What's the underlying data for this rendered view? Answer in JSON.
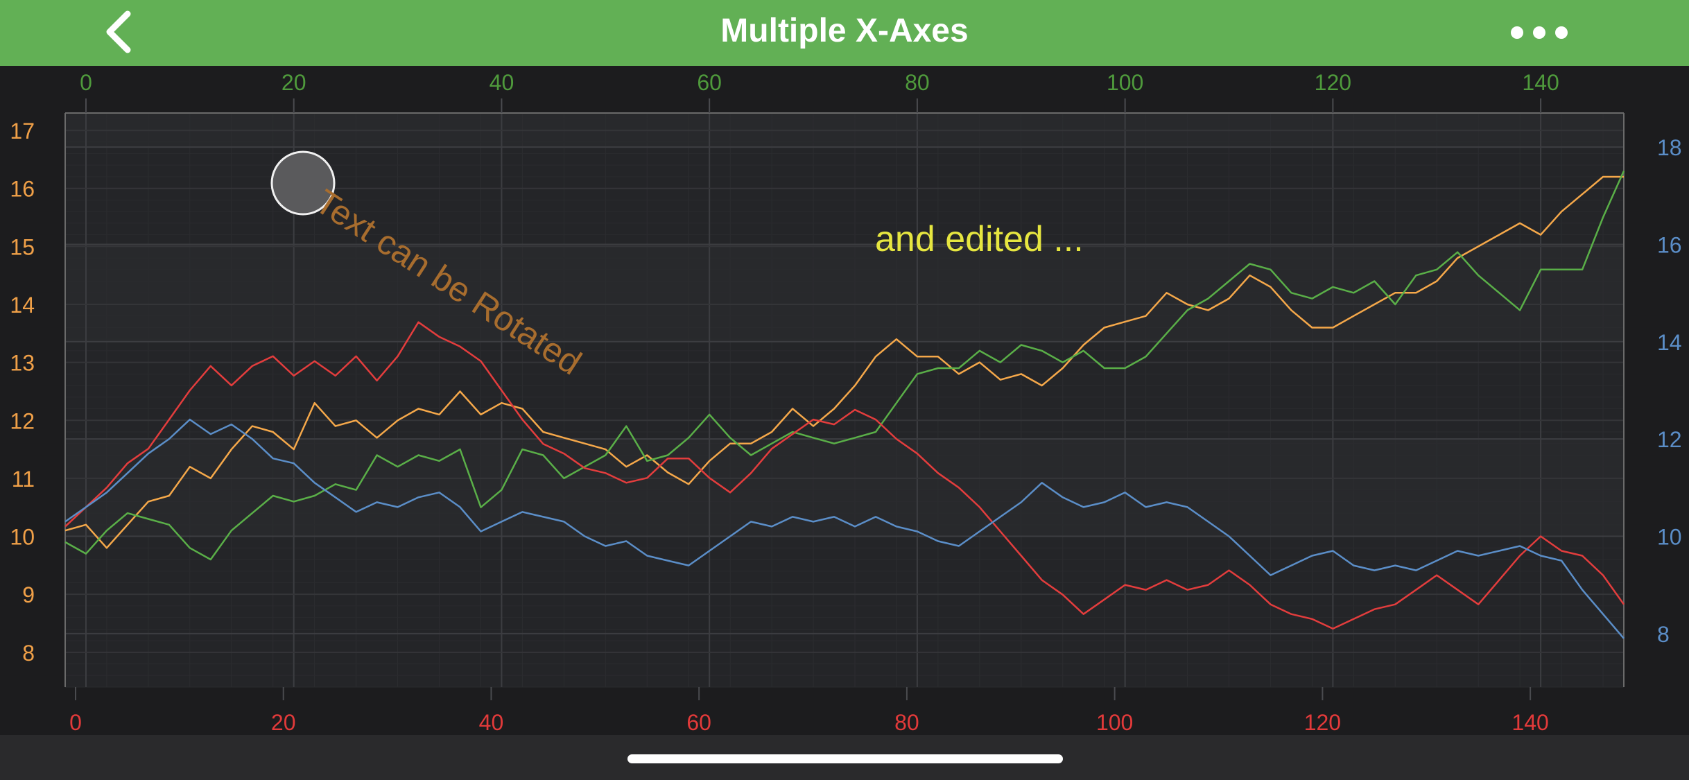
{
  "header": {
    "title": "Multiple X-Axes",
    "back_icon": "chevron-left-icon",
    "more_icon": "ellipsis-icon"
  },
  "annotations": {
    "rotated_text": "Text can be Rotated",
    "edited_text": "and edited ..."
  },
  "colors": {
    "header": "#62b055",
    "top_axis": "#4f9a3c",
    "bottom_axis": "#e23a3a",
    "left_axis": "#f0a048",
    "right_axis": "#5b8ec8",
    "rotated_text": "#a86d2e",
    "edited_text": "#e6e640"
  },
  "chart_data": {
    "type": "line",
    "title": "",
    "x_top": {
      "min": -2,
      "max": 148,
      "ticks": [
        0,
        20,
        40,
        60,
        80,
        100,
        120,
        140
      ]
    },
    "x_bottom": {
      "min": -1,
      "max": 149,
      "ticks": [
        0,
        20,
        40,
        60,
        80,
        100,
        120,
        140
      ]
    },
    "y_left": {
      "min": 7.4,
      "max": 17.3,
      "ticks": [
        8,
        9,
        10,
        11,
        12,
        13,
        14,
        15,
        16,
        17
      ]
    },
    "y_right": {
      "min": 6.9,
      "max": 18.7,
      "ticks": [
        8,
        10,
        12,
        14,
        16,
        18
      ]
    },
    "grid": true,
    "series": [
      {
        "color": "#f5a84a",
        "x_axis": "top",
        "y_axis": "left",
        "points": [
          [
            -2,
            10.1
          ],
          [
            0,
            10.2
          ],
          [
            2,
            9.8
          ],
          [
            4,
            10.2
          ],
          [
            6,
            10.6
          ],
          [
            8,
            10.7
          ],
          [
            10,
            11.2
          ],
          [
            12,
            11.0
          ],
          [
            14,
            11.5
          ],
          [
            16,
            11.9
          ],
          [
            18,
            11.8
          ],
          [
            20,
            11.5
          ],
          [
            22,
            12.3
          ],
          [
            24,
            11.9
          ],
          [
            26,
            12.0
          ],
          [
            28,
            11.7
          ],
          [
            30,
            12.0
          ],
          [
            32,
            12.2
          ],
          [
            34,
            12.1
          ],
          [
            36,
            12.5
          ],
          [
            38,
            12.1
          ],
          [
            40,
            12.3
          ],
          [
            42,
            12.2
          ],
          [
            44,
            11.8
          ],
          [
            46,
            11.7
          ],
          [
            48,
            11.6
          ],
          [
            50,
            11.5
          ],
          [
            52,
            11.2
          ],
          [
            54,
            11.4
          ],
          [
            56,
            11.1
          ],
          [
            58,
            10.9
          ],
          [
            60,
            11.3
          ],
          [
            62,
            11.6
          ],
          [
            64,
            11.6
          ],
          [
            66,
            11.8
          ],
          [
            68,
            12.2
          ],
          [
            70,
            11.9
          ],
          [
            72,
            12.2
          ],
          [
            74,
            12.6
          ],
          [
            76,
            13.1
          ],
          [
            78,
            13.4
          ],
          [
            80,
            13.1
          ],
          [
            82,
            13.1
          ],
          [
            84,
            12.8
          ],
          [
            86,
            13.0
          ],
          [
            88,
            12.7
          ],
          [
            90,
            12.8
          ],
          [
            92,
            12.6
          ],
          [
            94,
            12.9
          ],
          [
            96,
            13.3
          ],
          [
            98,
            13.6
          ],
          [
            100,
            13.7
          ],
          [
            102,
            13.8
          ],
          [
            104,
            14.2
          ],
          [
            106,
            14.0
          ],
          [
            108,
            13.9
          ],
          [
            110,
            14.1
          ],
          [
            112,
            14.5
          ],
          [
            114,
            14.3
          ],
          [
            116,
            13.9
          ],
          [
            118,
            13.6
          ],
          [
            120,
            13.6
          ],
          [
            122,
            13.8
          ],
          [
            124,
            14.0
          ],
          [
            126,
            14.2
          ],
          [
            128,
            14.2
          ],
          [
            130,
            14.4
          ],
          [
            132,
            14.8
          ],
          [
            134,
            15.0
          ],
          [
            136,
            15.2
          ],
          [
            138,
            15.4
          ],
          [
            140,
            15.2
          ],
          [
            142,
            15.6
          ],
          [
            144,
            15.9
          ],
          [
            146,
            16.2
          ],
          [
            148,
            16.2
          ]
        ]
      },
      {
        "color": "#5aaf48",
        "x_axis": "top",
        "y_axis": "left",
        "points": [
          [
            -2,
            9.9
          ],
          [
            0,
            9.7
          ],
          [
            2,
            10.1
          ],
          [
            4,
            10.4
          ],
          [
            6,
            10.3
          ],
          [
            8,
            10.2
          ],
          [
            10,
            9.8
          ],
          [
            12,
            9.6
          ],
          [
            14,
            10.1
          ],
          [
            16,
            10.4
          ],
          [
            18,
            10.7
          ],
          [
            20,
            10.6
          ],
          [
            22,
            10.7
          ],
          [
            24,
            10.9
          ],
          [
            26,
            10.8
          ],
          [
            28,
            11.4
          ],
          [
            30,
            11.2
          ],
          [
            32,
            11.4
          ],
          [
            34,
            11.3
          ],
          [
            36,
            11.5
          ],
          [
            38,
            10.5
          ],
          [
            40,
            10.8
          ],
          [
            42,
            11.5
          ],
          [
            44,
            11.4
          ],
          [
            46,
            11.0
          ],
          [
            48,
            11.2
          ],
          [
            50,
            11.4
          ],
          [
            52,
            11.9
          ],
          [
            54,
            11.3
          ],
          [
            56,
            11.4
          ],
          [
            58,
            11.7
          ],
          [
            60,
            12.1
          ],
          [
            62,
            11.7
          ],
          [
            64,
            11.4
          ],
          [
            66,
            11.6
          ],
          [
            68,
            11.8
          ],
          [
            70,
            11.7
          ],
          [
            72,
            11.6
          ],
          [
            74,
            11.7
          ],
          [
            76,
            11.8
          ],
          [
            78,
            12.3
          ],
          [
            80,
            12.8
          ],
          [
            82,
            12.9
          ],
          [
            84,
            12.9
          ],
          [
            86,
            13.2
          ],
          [
            88,
            13.0
          ],
          [
            90,
            13.3
          ],
          [
            92,
            13.2
          ],
          [
            94,
            13.0
          ],
          [
            96,
            13.2
          ],
          [
            98,
            12.9
          ],
          [
            100,
            12.9
          ],
          [
            102,
            13.1
          ],
          [
            104,
            13.5
          ],
          [
            106,
            13.9
          ],
          [
            108,
            14.1
          ],
          [
            110,
            14.4
          ],
          [
            112,
            14.7
          ],
          [
            114,
            14.6
          ],
          [
            116,
            14.2
          ],
          [
            118,
            14.1
          ],
          [
            120,
            14.3
          ],
          [
            122,
            14.2
          ],
          [
            124,
            14.4
          ],
          [
            126,
            14.0
          ],
          [
            128,
            14.5
          ],
          [
            130,
            14.6
          ],
          [
            132,
            14.9
          ],
          [
            134,
            14.5
          ],
          [
            136,
            14.2
          ],
          [
            138,
            13.9
          ],
          [
            140,
            14.6
          ],
          [
            142,
            14.6
          ],
          [
            144,
            14.6
          ],
          [
            146,
            15.5
          ],
          [
            148,
            16.3
          ]
        ]
      },
      {
        "color": "#e33d3d",
        "x_axis": "bottom",
        "y_axis": "right",
        "points": [
          [
            -1,
            10.2
          ],
          [
            1,
            10.6
          ],
          [
            3,
            11.0
          ],
          [
            5,
            11.5
          ],
          [
            7,
            11.8
          ],
          [
            9,
            12.4
          ],
          [
            11,
            13.0
          ],
          [
            13,
            13.5
          ],
          [
            15,
            13.1
          ],
          [
            17,
            13.5
          ],
          [
            19,
            13.7
          ],
          [
            21,
            13.3
          ],
          [
            23,
            13.6
          ],
          [
            25,
            13.3
          ],
          [
            27,
            13.7
          ],
          [
            29,
            13.2
          ],
          [
            31,
            13.7
          ],
          [
            33,
            14.4
          ],
          [
            35,
            14.1
          ],
          [
            37,
            13.9
          ],
          [
            39,
            13.6
          ],
          [
            41,
            13.0
          ],
          [
            43,
            12.4
          ],
          [
            45,
            11.9
          ],
          [
            47,
            11.7
          ],
          [
            49,
            11.4
          ],
          [
            51,
            11.3
          ],
          [
            53,
            11.1
          ],
          [
            55,
            11.2
          ],
          [
            57,
            11.6
          ],
          [
            59,
            11.6
          ],
          [
            61,
            11.2
          ],
          [
            63,
            10.9
          ],
          [
            65,
            11.3
          ],
          [
            67,
            11.8
          ],
          [
            69,
            12.1
          ],
          [
            71,
            12.4
          ],
          [
            73,
            12.3
          ],
          [
            75,
            12.6
          ],
          [
            77,
            12.4
          ],
          [
            79,
            12.0
          ],
          [
            81,
            11.7
          ],
          [
            83,
            11.3
          ],
          [
            85,
            11.0
          ],
          [
            87,
            10.6
          ],
          [
            89,
            10.1
          ],
          [
            91,
            9.6
          ],
          [
            93,
            9.1
          ],
          [
            95,
            8.8
          ],
          [
            97,
            8.4
          ],
          [
            99,
            8.7
          ],
          [
            101,
            9.0
          ],
          [
            103,
            8.9
          ],
          [
            105,
            9.1
          ],
          [
            107,
            8.9
          ],
          [
            109,
            9.0
          ],
          [
            111,
            9.3
          ],
          [
            113,
            9.0
          ],
          [
            115,
            8.6
          ],
          [
            117,
            8.4
          ],
          [
            119,
            8.3
          ],
          [
            121,
            8.1
          ],
          [
            123,
            8.3
          ],
          [
            125,
            8.5
          ],
          [
            127,
            8.6
          ],
          [
            129,
            8.9
          ],
          [
            131,
            9.2
          ],
          [
            133,
            8.9
          ],
          [
            135,
            8.6
          ],
          [
            137,
            9.1
          ],
          [
            139,
            9.6
          ],
          [
            141,
            10.0
          ],
          [
            143,
            9.7
          ],
          [
            145,
            9.6
          ],
          [
            147,
            9.2
          ],
          [
            149,
            8.6
          ]
        ]
      },
      {
        "color": "#5b8ec8",
        "x_axis": "bottom",
        "y_axis": "right",
        "points": [
          [
            -1,
            10.3
          ],
          [
            1,
            10.6
          ],
          [
            3,
            10.9
          ],
          [
            5,
            11.3
          ],
          [
            7,
            11.7
          ],
          [
            9,
            12.0
          ],
          [
            11,
            12.4
          ],
          [
            13,
            12.1
          ],
          [
            15,
            12.3
          ],
          [
            17,
            12.0
          ],
          [
            19,
            11.6
          ],
          [
            21,
            11.5
          ],
          [
            23,
            11.1
          ],
          [
            25,
            10.8
          ],
          [
            27,
            10.5
          ],
          [
            29,
            10.7
          ],
          [
            31,
            10.6
          ],
          [
            33,
            10.8
          ],
          [
            35,
            10.9
          ],
          [
            37,
            10.6
          ],
          [
            39,
            10.1
          ],
          [
            41,
            10.3
          ],
          [
            43,
            10.5
          ],
          [
            45,
            10.4
          ],
          [
            47,
            10.3
          ],
          [
            49,
            10.0
          ],
          [
            51,
            9.8
          ],
          [
            53,
            9.9
          ],
          [
            55,
            9.6
          ],
          [
            57,
            9.5
          ],
          [
            59,
            9.4
          ],
          [
            61,
            9.7
          ],
          [
            63,
            10.0
          ],
          [
            65,
            10.3
          ],
          [
            67,
            10.2
          ],
          [
            69,
            10.4
          ],
          [
            71,
            10.3
          ],
          [
            73,
            10.4
          ],
          [
            75,
            10.2
          ],
          [
            77,
            10.4
          ],
          [
            79,
            10.2
          ],
          [
            81,
            10.1
          ],
          [
            83,
            9.9
          ],
          [
            85,
            9.8
          ],
          [
            87,
            10.1
          ],
          [
            89,
            10.4
          ],
          [
            91,
            10.7
          ],
          [
            93,
            11.1
          ],
          [
            95,
            10.8
          ],
          [
            97,
            10.6
          ],
          [
            99,
            10.7
          ],
          [
            101,
            10.9
          ],
          [
            103,
            10.6
          ],
          [
            105,
            10.7
          ],
          [
            107,
            10.6
          ],
          [
            109,
            10.3
          ],
          [
            111,
            10.0
          ],
          [
            113,
            9.6
          ],
          [
            115,
            9.2
          ],
          [
            117,
            9.4
          ],
          [
            119,
            9.6
          ],
          [
            121,
            9.7
          ],
          [
            123,
            9.4
          ],
          [
            125,
            9.3
          ],
          [
            127,
            9.4
          ],
          [
            129,
            9.3
          ],
          [
            131,
            9.5
          ],
          [
            133,
            9.7
          ],
          [
            135,
            9.6
          ],
          [
            137,
            9.7
          ],
          [
            139,
            9.8
          ],
          [
            141,
            9.6
          ],
          [
            143,
            9.5
          ],
          [
            145,
            8.9
          ],
          [
            147,
            8.4
          ],
          [
            149,
            7.9
          ]
        ]
      }
    ]
  }
}
